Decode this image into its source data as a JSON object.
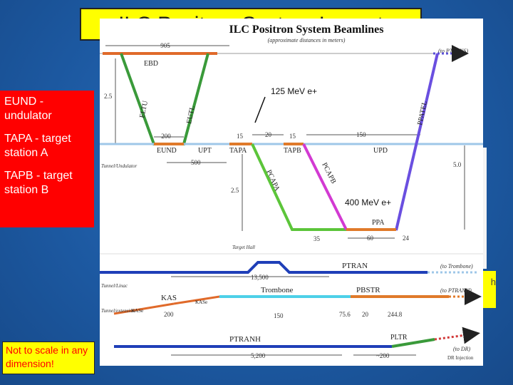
{
  "slide": {
    "title": "ILC Positron System Layout",
    "red_box_items": [
      "EUND - undulator",
      "TAPA - target station A",
      "TAPB - target station B"
    ],
    "note": "Not to scale in any dimension!",
    "peek_text": "h"
  },
  "diagram": {
    "title": "ILC Positron System Beamlines",
    "subtitle": "(approximate distances in meters)",
    "callout_125": "125 MeV e+",
    "callout_400": "400 MeV e+",
    "elements": {
      "ebd": "EBD",
      "eltu": "ELTU",
      "eutl": "EUTL",
      "eund": "EUND",
      "upt": "UPT",
      "tapa": "TAPA",
      "tapb": "TAPB",
      "upd": "UPD",
      "ppatel": "PPATEL",
      "pcapa": "PCAPA",
      "pcapb": "PCAPB",
      "ppa": "PPA",
      "ptran": "PTRAN",
      "kas": "KAS",
      "kase1": "KASe",
      "kase2": "KASe",
      "trombone": "Trombone",
      "pbstr": "PBSTR",
      "ptranh": "PTRANH",
      "pltr": "PLTR"
    },
    "dims": {
      "d905": "905",
      "d2_5a": "2.5",
      "d200a": "200",
      "d15a": "15",
      "d20a": "20",
      "d15b": "15",
      "d150a": "150",
      "d500": "500",
      "d5_0": "5.0",
      "d2_5b": "2.5",
      "d35": "35",
      "d60": "60",
      "d24": "24",
      "d13500": "13,500",
      "d200b": "200",
      "d150b": "150",
      "d75_6": "75.6",
      "d20b": "20",
      "d244_8": "244.8",
      "d5200": "5,200",
      "d200c": "~200"
    },
    "region_labels": {
      "tunnel_undulator": "Tunnel/Undulator",
      "target_hall": "Target Hall",
      "tunnel_linac": "Tunnel/Linac",
      "tunnel_extension": "Tunnel/extension",
      "dr_injection": "DR Injection"
    },
    "destinations": {
      "to_ptrans": "(to PTRANS)",
      "to_trombone": "(to Trombone)",
      "to_ptranh": "(to PTRANH)",
      "to_dr": "(to DR)"
    }
  }
}
